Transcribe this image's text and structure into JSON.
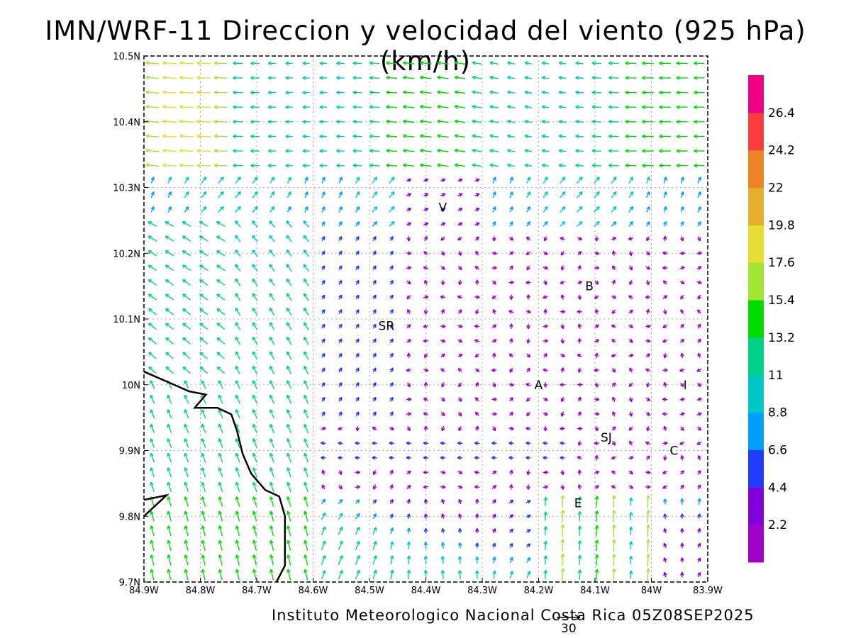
{
  "title": "IMN/WRF-11 Direccion y velocidad del viento (925 hPa)(km/h)",
  "footer": "Instituto Meteorologico Nacional Costa Rica 05Z08SEP2025",
  "reference_vector": {
    "label": "30",
    "value": 30
  },
  "chart_data": {
    "type": "vector-field",
    "title": "IMN/WRF-11 Direccion y velocidad del viento (925 hPa)(km/h)",
    "xlabel": "",
    "ylabel": "",
    "xlim": [
      -84.9,
      -83.9
    ],
    "ylim": [
      9.7,
      10.5
    ],
    "x_ticks": [
      "84.9W",
      "84.8W",
      "84.7W",
      "84.6W",
      "84.5W",
      "84.4W",
      "84.3W",
      "84.2W",
      "84.1W",
      "84W",
      "83.9W"
    ],
    "y_ticks": [
      "9.7N",
      "9.8N",
      "9.9N",
      "10N",
      "10.1N",
      "10.2N",
      "10.3N",
      "10.4N",
      "10.5N"
    ],
    "grid": true,
    "colorbar": {
      "labels": [
        "2.2",
        "4.4",
        "6.6",
        "8.8",
        "11",
        "13.2",
        "15.4",
        "17.6",
        "19.8",
        "22",
        "24.2",
        "26.4"
      ],
      "colors": [
        "#a000c8",
        "#8200dc",
        "#1e3cff",
        "#00a0ff",
        "#00c8c8",
        "#00d28c",
        "#00dc00",
        "#a0e632",
        "#e6dc32",
        "#e6af2d",
        "#f08228",
        "#fa3c3c",
        "#f00082"
      ]
    },
    "places": [
      {
        "label": "V",
        "lon": -84.37,
        "lat": 10.27
      },
      {
        "label": "B",
        "lon": -84.11,
        "lat": 10.15
      },
      {
        "label": "SR",
        "lon": -84.47,
        "lat": 10.09
      },
      {
        "label": "A",
        "lon": -84.2,
        "lat": 10.0
      },
      {
        "label": "I",
        "lon": -83.94,
        "lat": 10.0
      },
      {
        "label": "SJ",
        "lon": -84.08,
        "lat": 9.92
      },
      {
        "label": "C",
        "lon": -83.96,
        "lat": 9.9
      },
      {
        "label": "E",
        "lon": -84.13,
        "lat": 9.82
      }
    ],
    "coastline": [
      [
        -84.9,
        10.02
      ],
      [
        -84.82,
        9.99
      ],
      [
        -84.79,
        9.985
      ],
      [
        -84.81,
        9.965
      ],
      [
        -84.77,
        9.965
      ],
      [
        -84.745,
        9.955
      ],
      [
        -84.735,
        9.93
      ],
      [
        -84.725,
        9.895
      ],
      [
        -84.71,
        9.865
      ],
      [
        -84.685,
        9.84
      ],
      [
        -84.66,
        9.83
      ],
      [
        -84.65,
        9.8
      ],
      [
        -84.65,
        9.725
      ],
      [
        -84.665,
        9.7
      ]
    ],
    "coastline_peninsula": [
      [
        -84.9,
        9.8
      ],
      [
        -84.86,
        9.832
      ],
      [
        -84.9,
        9.825
      ]
    ]
  }
}
